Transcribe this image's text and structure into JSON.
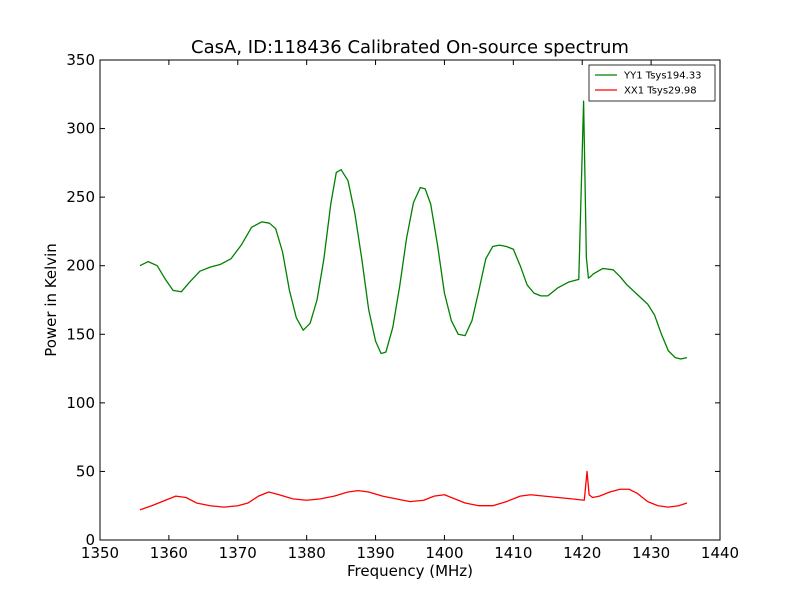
{
  "chart_data": {
    "type": "line",
    "title": "CasA, ID:118436 Calibrated On-source spectrum",
    "xlabel": "Frequency (MHz)",
    "ylabel": "Power in Kelvin",
    "xlim": [
      1350,
      1440
    ],
    "ylim": [
      0,
      350
    ],
    "xticks": [
      1350,
      1360,
      1370,
      1380,
      1390,
      1400,
      1410,
      1420,
      1430,
      1440
    ],
    "yticks": [
      0,
      50,
      100,
      150,
      200,
      250,
      300,
      350
    ],
    "grid": false,
    "legend_position": "top-right",
    "series": [
      {
        "name": "YY1 Tsys194.33",
        "color": "#008000",
        "x": [
          1355.8,
          1357.0,
          1358.3,
          1359.5,
          1360.6,
          1361.8,
          1363.0,
          1364.5,
          1366.0,
          1367.5,
          1369.0,
          1370.5,
          1372.0,
          1373.5,
          1374.6,
          1375.5,
          1376.5,
          1377.5,
          1378.5,
          1379.5,
          1380.5,
          1381.5,
          1382.5,
          1383.5,
          1384.3,
          1385.0,
          1386.0,
          1387.0,
          1388.0,
          1389.0,
          1390.0,
          1390.8,
          1391.5,
          1392.5,
          1393.5,
          1394.5,
          1395.5,
          1396.5,
          1397.2,
          1398.0,
          1399.0,
          1400.0,
          1401.0,
          1402.0,
          1403.0,
          1404.0,
          1405.0,
          1406.0,
          1407.0,
          1408.0,
          1409.0,
          1410.0,
          1411.0,
          1412.0,
          1413.0,
          1414.0,
          1415.0,
          1416.5,
          1418.0,
          1419.5,
          1420.2,
          1420.6,
          1420.9,
          1421.2,
          1421.6,
          1423.0,
          1424.5,
          1425.5,
          1426.5,
          1428.0,
          1429.5,
          1430.5,
          1431.5,
          1432.5,
          1433.5,
          1434.3,
          1435.2
        ],
        "values": [
          200,
          203,
          200,
          190,
          182,
          181,
          188,
          196,
          199,
          201,
          205,
          215,
          228,
          232,
          231,
          227,
          210,
          182,
          162,
          153,
          158,
          175,
          205,
          245,
          268,
          270,
          262,
          238,
          205,
          168,
          145,
          136,
          137,
          155,
          185,
          220,
          246,
          257,
          256,
          245,
          215,
          180,
          160,
          150,
          149,
          160,
          182,
          205,
          214,
          215,
          214,
          212,
          200,
          186,
          180,
          178,
          178,
          184,
          188,
          190,
          320,
          206,
          191,
          192,
          194,
          198,
          197,
          192,
          186,
          179,
          172,
          164,
          150,
          138,
          133,
          132,
          133
        ]
      },
      {
        "name": "XX1 Tsys29.98",
        "color": "#ff0000",
        "x": [
          1355.8,
          1357.5,
          1359.5,
          1361.0,
          1362.5,
          1364.0,
          1366.0,
          1368.0,
          1370.0,
          1371.5,
          1373.0,
          1374.5,
          1376.0,
          1378.0,
          1380.0,
          1382.0,
          1384.0,
          1386.0,
          1387.5,
          1389.0,
          1391.0,
          1393.0,
          1395.0,
          1397.0,
          1398.5,
          1400.0,
          1401.5,
          1403.0,
          1405.0,
          1407.0,
          1409.0,
          1411.0,
          1412.5,
          1414.5,
          1416.5,
          1418.5,
          1420.3,
          1420.7,
          1421.0,
          1421.5,
          1422.5,
          1424.0,
          1425.5,
          1426.8,
          1428.0,
          1429.5,
          1431.0,
          1432.5,
          1434.0,
          1435.2
        ],
        "values": [
          22,
          25,
          29,
          32,
          31,
          27,
          25,
          24,
          25,
          27,
          32,
          35,
          33,
          30,
          29,
          30,
          32,
          35,
          36,
          35,
          32,
          30,
          28,
          29,
          32,
          33,
          30,
          27,
          25,
          25,
          28,
          32,
          33,
          32,
          31,
          30,
          29,
          50,
          33,
          31,
          32,
          35,
          37,
          37,
          34,
          28,
          25,
          24,
          25,
          27
        ]
      }
    ]
  }
}
